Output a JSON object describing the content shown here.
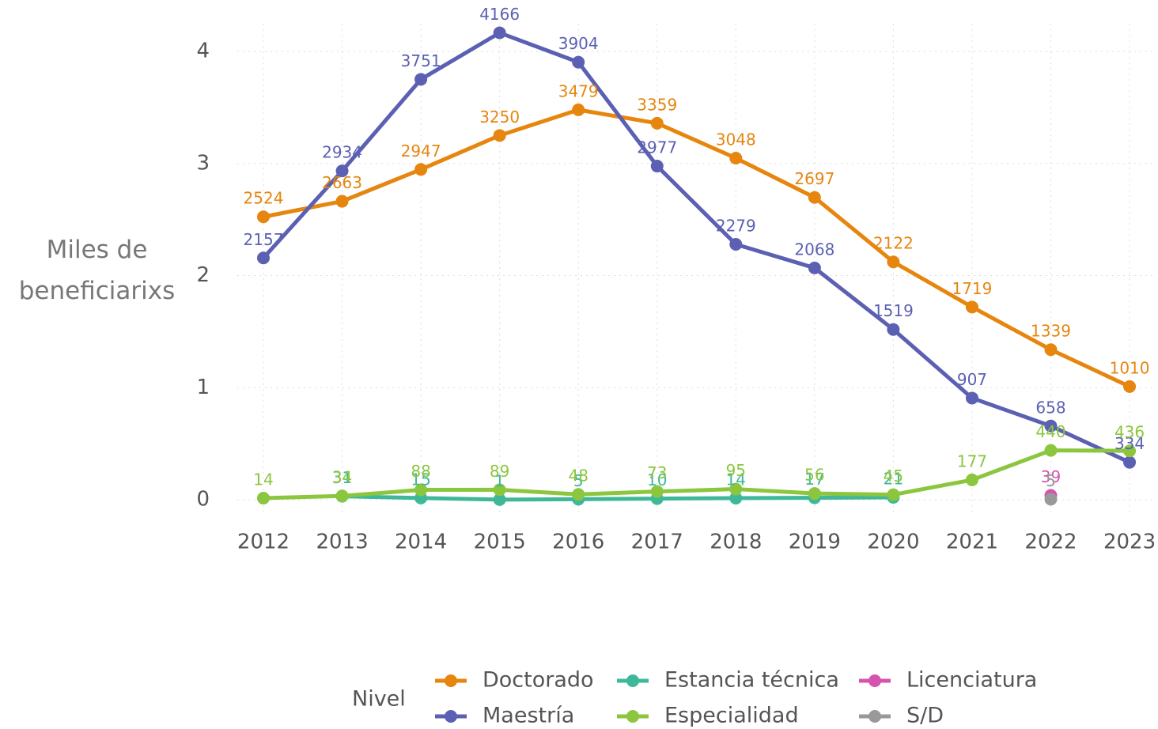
{
  "chart_data": {
    "type": "line",
    "ylabel": "Miles de beneficiarixs",
    "categories": [
      "2012",
      "2013",
      "2014",
      "2015",
      "2016",
      "2017",
      "2018",
      "2019",
      "2020",
      "2021",
      "2022",
      "2023"
    ],
    "ylim": [
      -0.1,
      4.3
    ],
    "yticks": [
      0,
      1,
      2,
      3,
      4
    ],
    "grid": true,
    "legend_title": "Nivel",
    "legend": "bottom",
    "series": [
      {
        "name": "Doctorado",
        "color": "#e6860f",
        "values": [
          2.524,
          2.663,
          2.947,
          3.25,
          3.479,
          3.359,
          3.048,
          2.697,
          2.122,
          1.719,
          1.339,
          1.01
        ],
        "value_labels": [
          "2524",
          "2663",
          "2947",
          "3250",
          "3479",
          "3359",
          "3048",
          "2697",
          "2122",
          "1719",
          "1339",
          "1010"
        ]
      },
      {
        "name": "Maestría",
        "color": "#5b60b2",
        "values": [
          2.157,
          2.934,
          3.751,
          4.166,
          3.904,
          2.977,
          2.279,
          2.068,
          1.519,
          0.907,
          0.658,
          0.334
        ],
        "value_labels": [
          "2157",
          "2934",
          "3751",
          "4166",
          "3904",
          "2977",
          "2279",
          "2068",
          "1519",
          "907",
          "658",
          "334"
        ]
      },
      {
        "name": "Estancia técnica",
        "color": "#3fb89a",
        "values": [
          null,
          0.031,
          0.015,
          0.001,
          0.005,
          0.01,
          0.014,
          0.017,
          0.021,
          null,
          null,
          null
        ],
        "value_labels": [
          null,
          "31",
          "15",
          "1",
          "5",
          "10",
          "14",
          "17",
          "21",
          null,
          null,
          null
        ]
      },
      {
        "name": "Especialidad",
        "color": "#8cc63e",
        "values": [
          0.014,
          0.034,
          0.088,
          0.089,
          0.048,
          0.073,
          0.095,
          0.056,
          0.045,
          0.177,
          0.44,
          0.436
        ],
        "value_labels": [
          "14",
          "34",
          "88",
          "89",
          "48",
          "73",
          "95",
          "56",
          "45",
          "177",
          "440",
          "436"
        ]
      },
      {
        "name": "Licenciatura",
        "color": "#d653b0",
        "values": [
          null,
          null,
          null,
          null,
          null,
          null,
          null,
          null,
          null,
          null,
          0.039,
          null
        ],
        "value_labels": [
          null,
          null,
          null,
          null,
          null,
          null,
          null,
          null,
          null,
          null,
          "39",
          null
        ]
      },
      {
        "name": "S/D",
        "color": "#999999",
        "values": [
          null,
          null,
          null,
          null,
          null,
          null,
          null,
          null,
          null,
          null,
          0.005,
          null
        ],
        "value_labels": [
          null,
          null,
          null,
          null,
          null,
          null,
          null,
          null,
          null,
          null,
          "5",
          null
        ]
      }
    ]
  }
}
